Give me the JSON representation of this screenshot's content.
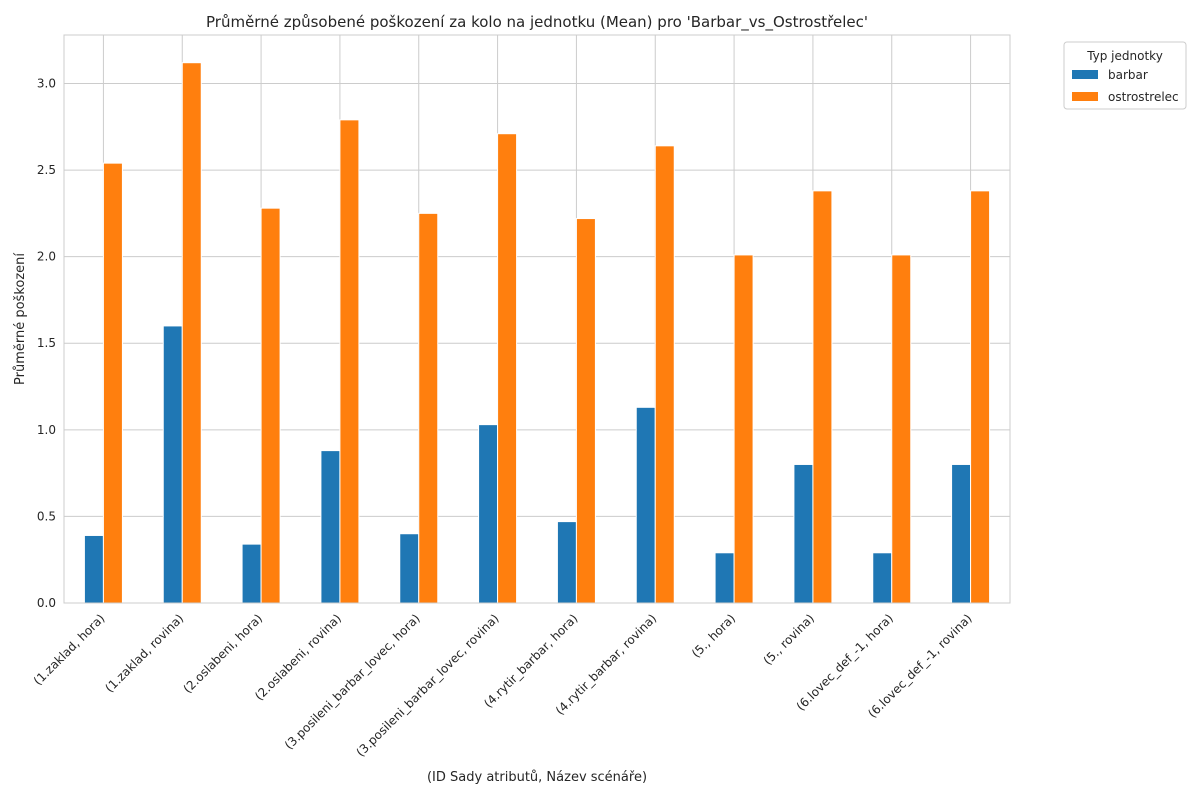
{
  "chart_data": {
    "type": "bar",
    "title": "Průměrné způsobené poškození za kolo na jednotku (Mean) pro 'Barbar_vs_Ostrostřelec'",
    "xlabel": "(ID Sady atributů, Název scénáře)",
    "ylabel": "Průměrné poškození",
    "ylim": [
      0,
      3.28
    ],
    "yticks": [
      "0.0",
      "0.5",
      "1.0",
      "1.5",
      "2.0",
      "2.5",
      "3.0"
    ],
    "grid": true,
    "legend": {
      "title": "Typ jednotky",
      "placement": "outside-top-right"
    },
    "categories": [
      "(1.zaklad, hora)",
      "(1.zaklad, rovina)",
      "(2.oslabeni, hora)",
      "(2.oslabeni, rovina)",
      "(3.posileni_barbar_lovec, hora)",
      "(3.posileni_barbar_lovec, rovina)",
      "(4.rytir_barbar, hora)",
      "(4.rytir_barbar, rovina)",
      "(5., hora)",
      "(5., rovina)",
      "(6.lovec_def_-1, hora)",
      "(6.lovec_def_-1, rovina)"
    ],
    "series": [
      {
        "name": "barbar",
        "color": "#1f77b4",
        "values": [
          0.39,
          1.6,
          0.34,
          0.88,
          0.4,
          1.03,
          0.47,
          1.13,
          0.29,
          0.8,
          0.29,
          0.8
        ]
      },
      {
        "name": "ostrostrelec",
        "color": "#ff7f0e",
        "values": [
          2.54,
          3.12,
          2.28,
          2.79,
          2.25,
          2.71,
          2.22,
          2.64,
          2.01,
          2.38,
          2.01,
          2.38
        ]
      }
    ]
  }
}
